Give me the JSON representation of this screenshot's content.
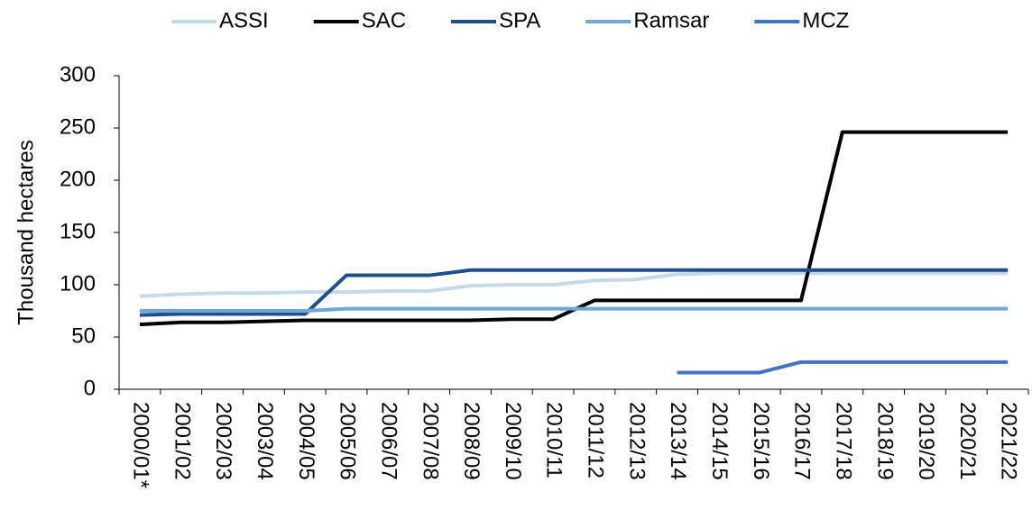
{
  "chart_data": {
    "type": "line",
    "y_label": "Thousand hectares",
    "categories": [
      "2000/01*",
      "2001/02",
      "2002/03",
      "2003/04",
      "2004/05",
      "2005/06",
      "2006/07",
      "2007/08",
      "2008/09",
      "2009/10",
      "2010/11",
      "2011/12",
      "2012/13",
      "2013/14",
      "2014/15",
      "2015/16",
      "2016/17",
      "2017/18",
      "2018/19",
      "2019/20",
      "2020/21",
      "2021/22"
    ],
    "series": [
      {
        "name": "ASSI",
        "color": "#c5d9e8",
        "values": [
          89,
          91,
          92,
          92,
          93,
          93,
          94,
          94,
          99,
          100,
          100,
          104,
          105,
          110,
          111,
          111,
          111,
          111,
          111,
          111,
          111,
          111
        ]
      },
      {
        "name": "SAC",
        "color": "#000000",
        "values": [
          62,
          64,
          64,
          65,
          66,
          66,
          66,
          66,
          66,
          67,
          67,
          85,
          85,
          85,
          85,
          85,
          85,
          246,
          246,
          246,
          246,
          246
        ]
      },
      {
        "name": "SPA",
        "color": "#1f4e8c",
        "values": [
          71,
          72,
          72,
          72,
          72,
          109,
          109,
          109,
          114,
          114,
          114,
          114,
          114,
          114,
          114,
          114,
          114,
          114,
          114,
          114,
          114,
          114
        ]
      },
      {
        "name": "Ramsar",
        "color": "#6fa8d6",
        "values": [
          75,
          75,
          75,
          75,
          75,
          77,
          77,
          77,
          77,
          77,
          77,
          77,
          77,
          77,
          77,
          77,
          77,
          77,
          77,
          77,
          77,
          77
        ]
      },
      {
        "name": "MCZ",
        "color": "#4472c4",
        "values": [
          null,
          null,
          null,
          null,
          null,
          null,
          null,
          null,
          null,
          null,
          null,
          null,
          null,
          16,
          16,
          16,
          26,
          26,
          26,
          26,
          26,
          26
        ]
      }
    ],
    "ylim": [
      0,
      300
    ],
    "yticks": [
      0,
      50,
      100,
      150,
      200,
      250,
      300
    ],
    "grid": false,
    "legend": "top"
  }
}
